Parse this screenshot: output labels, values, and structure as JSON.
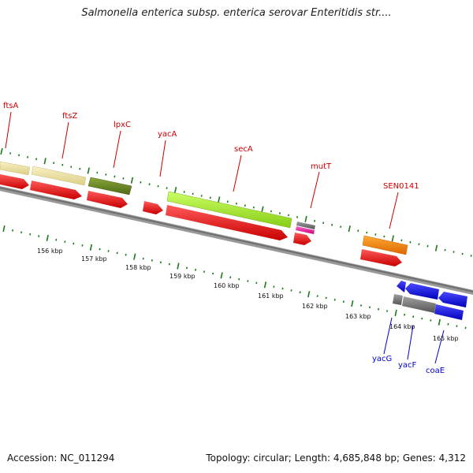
{
  "title": "Salmonella enterica subsp. enterica serovar Enteritidis str....",
  "footer": {
    "accession": "Accession: NC_011294",
    "summary": "Topology: circular; Length: 4,685,848 bp; Genes: 4,312"
  },
  "ruler_ticks": [
    "156 kbp",
    "157 kbp",
    "158 kbp",
    "159 kbp",
    "160 kbp",
    "161 kbp",
    "162 kbp",
    "163 kbp",
    "164 kbp",
    "165 kbp"
  ],
  "gene_labels": [
    {
      "text": "ftsA",
      "color": "#cc0000"
    },
    {
      "text": "ftsZ",
      "color": "#cc0000"
    },
    {
      "text": "lpxC",
      "color": "#cc0000"
    },
    {
      "text": "yacA",
      "color": "#cc0000"
    },
    {
      "text": "secA",
      "color": "#cc0000"
    },
    {
      "text": "mutT",
      "color": "#cc0000"
    },
    {
      "text": "SEN0141",
      "color": "#cc0000"
    },
    {
      "text": "yacG",
      "color": "#0000cc"
    },
    {
      "text": "yacF",
      "color": "#0000cc"
    },
    {
      "text": "coaE",
      "color": "#0000cc"
    }
  ],
  "colors": {
    "forward_cds": "#ee0000",
    "reverse_cds": "#0000ee",
    "backbone": "#888888",
    "tick": "#1a7a1a",
    "pale_yellow": "#efe6a4",
    "olive": "#6b8a24",
    "lime": "#a6ee2a",
    "magenta": "#ee2a9a",
    "orange": "#ff8800",
    "gray": "#777777"
  }
}
